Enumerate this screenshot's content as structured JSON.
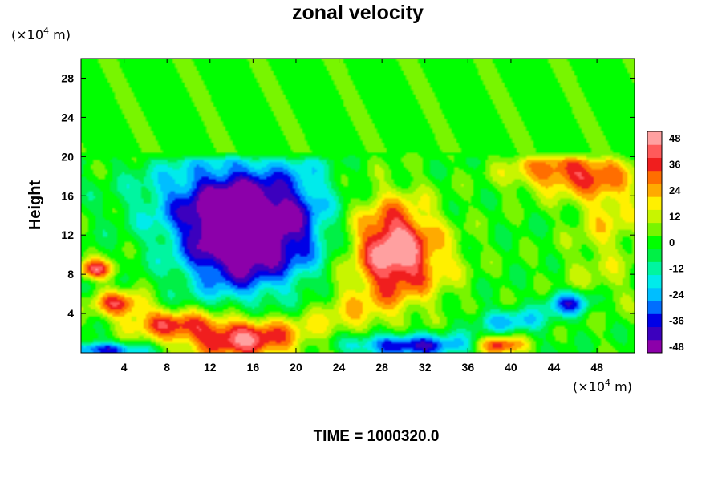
{
  "chart_data": {
    "type": "heatmap",
    "title": "zonal velocity",
    "ylabel": "Height",
    "xlabel": "",
    "x_unit": {
      "prefix": "(×10",
      "exp": "4",
      "suffix": " m)"
    },
    "y_unit": {
      "prefix": "(×10",
      "exp": "4",
      "suffix": " m)"
    },
    "xlim": [
      0,
      51.5
    ],
    "ylim": [
      0,
      30
    ],
    "x_ticks": [
      4,
      8,
      12,
      16,
      20,
      24,
      28,
      32,
      36,
      40,
      44,
      48
    ],
    "y_ticks": [
      4,
      8,
      12,
      16,
      20,
      24,
      28
    ],
    "grid": false,
    "colorbar": {
      "range": [
        -48,
        48
      ],
      "step": 6,
      "ticks": [
        48,
        36,
        24,
        12,
        0,
        -12,
        -24,
        -36,
        -48
      ]
    },
    "field_features": [
      {
        "name": "western jet core",
        "x": 14.5,
        "y": 11.5,
        "value": -52
      },
      {
        "name": "central jet core",
        "x": 29,
        "y": 10.5,
        "value": 52
      },
      {
        "name": "upper-right maximum",
        "x": 45,
        "y": 18.5,
        "value": 38
      },
      {
        "name": "near-surface maximum",
        "x": 15,
        "y": 1.5,
        "value": 50
      },
      {
        "name": "lower-right minimum",
        "x": 45.5,
        "y": 5,
        "value": -40
      },
      {
        "name": "near-surface minimum",
        "x": 30,
        "y": 0.8,
        "value": -46
      },
      {
        "name": "upper layer",
        "y_from": 20.5,
        "y_to": 30,
        "value": 2
      }
    ],
    "annotation": "TIME = 1000320.0"
  }
}
